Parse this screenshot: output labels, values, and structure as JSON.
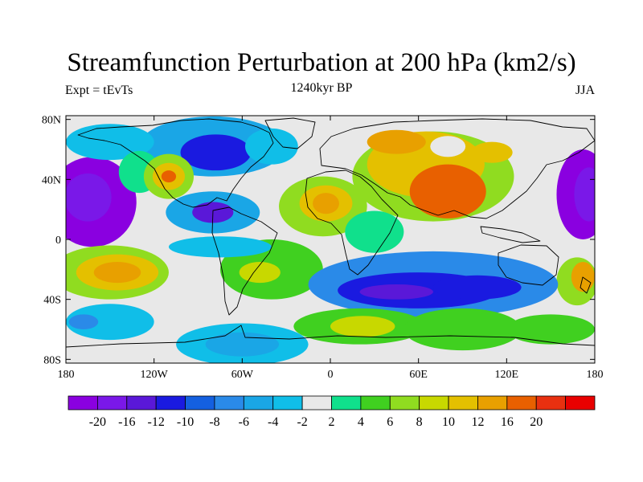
{
  "title": "Streamfunction Perturbation at 200 hPa (km2/s)",
  "experiment_label": "Expt = tEvTs",
  "time_label": "1240kyr BP",
  "season_label": "JJA",
  "lat_labels": [
    "80N",
    "40N",
    "0",
    "40S",
    "80S"
  ],
  "lat_values": [
    80,
    40,
    0,
    -40,
    -80
  ],
  "lon_labels": [
    "180",
    "120W",
    "60W",
    "0",
    "60E",
    "120E",
    "180"
  ],
  "lon_values": [
    -180,
    -120,
    -60,
    0,
    60,
    120,
    180
  ],
  "colorbar": {
    "colors": [
      "#8a00e0",
      "#7a18e8",
      "#5a18d8",
      "#1a1ae0",
      "#1460e0",
      "#2a8ae8",
      "#1aa6e6",
      "#10bee8",
      "#e8e8e8",
      "#10e08c",
      "#40d020",
      "#90dc20",
      "#c8d800",
      "#e4c000",
      "#e8a000",
      "#e86000",
      "#e83010",
      "#e80000"
    ],
    "labels": [
      "-20",
      "-16",
      "-12",
      "-10",
      "-8",
      "-6",
      "-4",
      "-2",
      "2",
      "4",
      "6",
      "8",
      "10",
      "12",
      "16",
      "20"
    ]
  },
  "contour_blobs": [
    {
      "lon": -162,
      "lat": 25,
      "rx": 30,
      "ry": 30,
      "level": -24
    },
    {
      "lon": -165,
      "lat": 28,
      "rx": 16,
      "ry": 16,
      "level": -18
    },
    {
      "lon": 172,
      "lat": 30,
      "rx": 18,
      "ry": 30,
      "level": -24
    },
    {
      "lon": 176,
      "lat": 30,
      "rx": 10,
      "ry": 18,
      "level": -18
    },
    {
      "lon": -80,
      "lat": 62,
      "rx": 50,
      "ry": 20,
      "level": -6
    },
    {
      "lon": -78,
      "lat": 58,
      "rx": 24,
      "ry": 12,
      "level": -12
    },
    {
      "lon": -80,
      "lat": 18,
      "rx": 32,
      "ry": 14,
      "level": -6
    },
    {
      "lon": -80,
      "lat": 18,
      "rx": 14,
      "ry": 7,
      "level": -14
    },
    {
      "lon": -40,
      "lat": 62,
      "rx": 18,
      "ry": 12,
      "level": -3
    },
    {
      "lon": -150,
      "lat": 65,
      "rx": 30,
      "ry": 12,
      "level": -3
    },
    {
      "lon": -130,
      "lat": 45,
      "rx": 14,
      "ry": 14,
      "level": 3
    },
    {
      "lon": -110,
      "lat": 42,
      "rx": 17,
      "ry": 15,
      "level": 7
    },
    {
      "lon": -110,
      "lat": 42,
      "rx": 11,
      "ry": 9,
      "level": 11
    },
    {
      "lon": -110,
      "lat": 42,
      "rx": 5,
      "ry": 4,
      "level": 17
    },
    {
      "lon": -5,
      "lat": 22,
      "rx": 30,
      "ry": 20,
      "level": 6
    },
    {
      "lon": -3,
      "lat": 24,
      "rx": 18,
      "ry": 12,
      "level": 11
    },
    {
      "lon": -3,
      "lat": 24,
      "rx": 9,
      "ry": 7,
      "level": 14
    },
    {
      "lon": 70,
      "lat": 42,
      "rx": 55,
      "ry": 30,
      "level": 6
    },
    {
      "lon": 65,
      "lat": 50,
      "rx": 40,
      "ry": 22,
      "level": 11
    },
    {
      "lon": 80,
      "lat": 32,
      "rx": 26,
      "ry": 18,
      "level": 18
    },
    {
      "lon": 45,
      "lat": 65,
      "rx": 20,
      "ry": 8,
      "level": 14
    },
    {
      "lon": 110,
      "lat": 58,
      "rx": 14,
      "ry": 7,
      "level": 11
    },
    {
      "lon": 80,
      "lat": 62,
      "rx": 12,
      "ry": 7,
      "level": 1
    },
    {
      "lon": -150,
      "lat": -22,
      "rx": 40,
      "ry": 18,
      "level": 6
    },
    {
      "lon": -145,
      "lat": -22,
      "rx": 28,
      "ry": 12,
      "level": 11
    },
    {
      "lon": -145,
      "lat": -22,
      "rx": 16,
      "ry": 7,
      "level": 14
    },
    {
      "lon": 168,
      "lat": -28,
      "rx": 14,
      "ry": 16,
      "level": 7
    },
    {
      "lon": 172,
      "lat": -25,
      "rx": 8,
      "ry": 10,
      "level": 14
    },
    {
      "lon": -40,
      "lat": -20,
      "rx": 35,
      "ry": 20,
      "level": 5
    },
    {
      "lon": -48,
      "lat": -22,
      "rx": 14,
      "ry": 7,
      "level": 9
    },
    {
      "lon": -75,
      "lat": -5,
      "rx": 35,
      "ry": 7,
      "level": -4
    },
    {
      "lon": 70,
      "lat": -30,
      "rx": 85,
      "ry": 22,
      "level": -7
    },
    {
      "lon": 60,
      "lat": -34,
      "rx": 55,
      "ry": 12,
      "level": -12
    },
    {
      "lon": 100,
      "lat": -32,
      "rx": 30,
      "ry": 8,
      "level": -12
    },
    {
      "lon": 45,
      "lat": -35,
      "rx": 25,
      "ry": 5,
      "level": -14
    },
    {
      "lon": 20,
      "lat": -58,
      "rx": 45,
      "ry": 12,
      "level": 5
    },
    {
      "lon": 22,
      "lat": -58,
      "rx": 22,
      "ry": 7,
      "level": 9
    },
    {
      "lon": 90,
      "lat": -60,
      "rx": 40,
      "ry": 14,
      "level": 4
    },
    {
      "lon": 150,
      "lat": -60,
      "rx": 30,
      "ry": 10,
      "level": 4
    },
    {
      "lon": -150,
      "lat": -55,
      "rx": 30,
      "ry": 12,
      "level": -3
    },
    {
      "lon": -168,
      "lat": -55,
      "rx": 10,
      "ry": 5,
      "level": -7
    },
    {
      "lon": -60,
      "lat": -70,
      "rx": 45,
      "ry": 14,
      "level": -3
    },
    {
      "lon": -60,
      "lat": -70,
      "rx": 25,
      "ry": 8,
      "level": -6
    },
    {
      "lon": 30,
      "lat": 5,
      "rx": 20,
      "ry": 14,
      "level": 3
    }
  ]
}
